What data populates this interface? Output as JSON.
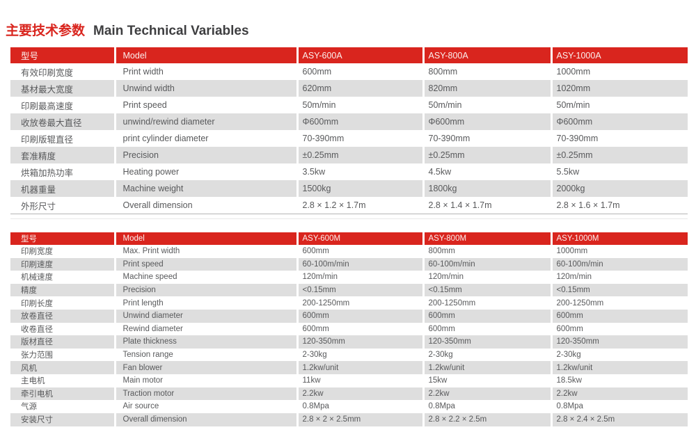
{
  "page": {
    "title_zh": "主要技术参数",
    "title_en": "Main Technical Variables"
  },
  "colors": {
    "accent_red": "#d9251e",
    "alt_row_gray": "#dedede",
    "body_text_gray": "#58595b",
    "header_text": "#fcf0ee"
  },
  "table_a": {
    "headers": [
      "型号",
      "Model",
      "ASY-600A",
      "ASY-800A",
      "ASY-1000A"
    ],
    "rows": [
      [
        "有效印刷宽度",
        "Print width",
        "600mm",
        "800mm",
        "1000mm"
      ],
      [
        "基材最大宽度",
        "Unwind width",
        "620mm",
        "820mm",
        "1020mm"
      ],
      [
        "印刷最高速度",
        "Print speed",
        "50m/min",
        "50m/min",
        "50m/min"
      ],
      [
        "收放卷最大直径",
        "unwind/rewind diameter",
        "Φ600mm",
        "Φ600mm",
        "Φ600mm"
      ],
      [
        "印刷版辊直径",
        "print cylinder diameter",
        "70-390mm",
        "70-390mm",
        "70-390mm"
      ],
      [
        "套准精度",
        "Precision",
        "±0.25mm",
        "±0.25mm",
        "±0.25mm"
      ],
      [
        "烘箱加热功率",
        "Heating power",
        "3.5kw",
        "4.5kw",
        "5.5kw"
      ],
      [
        "机器重量",
        "Machine weight",
        "1500kg",
        "1800kg",
        "2000kg"
      ],
      [
        "外形尺寸",
        "Overall dimension",
        "2.8 × 1.2 × 1.7m",
        "2.8 × 1.4 × 1.7m",
        "2.8 × 1.6 × 1.7m"
      ]
    ]
  },
  "table_b": {
    "headers": [
      "型号",
      "Model",
      "ASY-600M",
      "ASY-800M",
      "ASY-1000M"
    ],
    "rows": [
      [
        "印刷宽度",
        "Max. Print width",
        "600mm",
        "800mm",
        "1000mm"
      ],
      [
        "印刷速度",
        "Print speed",
        "60-100m/min",
        "60-100m/min",
        "60-100m/min"
      ],
      [
        "机械速度",
        "Machine speed",
        "120m/min",
        "120m/min",
        "120m/min"
      ],
      [
        "精度",
        "Precision",
        "<0.15mm",
        "<0.15mm",
        "<0.15mm"
      ],
      [
        "印刷长度",
        "Print length",
        "200-1250mm",
        "200-1250mm",
        "200-1250mm"
      ],
      [
        "放卷直径",
        "Unwind diameter",
        "600mm",
        "600mm",
        "600mm"
      ],
      [
        "收卷直径",
        "Rewind diameter",
        "600mm",
        "600mm",
        "600mm"
      ],
      [
        "版材直径",
        "Plate thickness",
        "120-350mm",
        "120-350mm",
        "120-350mm"
      ],
      [
        "张力范围",
        "Tension range",
        "2-30kg",
        "2-30kg",
        "2-30kg"
      ],
      [
        "风机",
        "Fan blower",
        "1.2kw/unit",
        "1.2kw/unit",
        "1.2kw/unit"
      ],
      [
        "主电机",
        "Main motor",
        "11kw",
        "15kw",
        "18.5kw"
      ],
      [
        "牵引电机",
        "Traction motor",
        "2.2kw",
        "2.2kw",
        "2.2kw"
      ],
      [
        "气源",
        "Air source",
        "0.8Mpa",
        "0.8Mpa",
        "0.8Mpa"
      ],
      [
        "安装尺寸",
        "Overall dimension",
        "2.8 × 2 × 2.5mm",
        "2.8 × 2.2 × 2.5m",
        "2.8 × 2.4 × 2.5m"
      ]
    ]
  }
}
